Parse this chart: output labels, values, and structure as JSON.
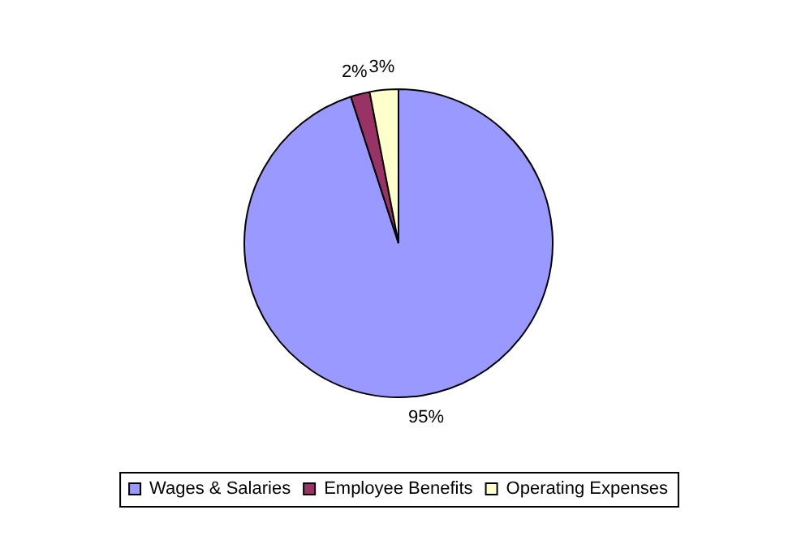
{
  "chart_data": {
    "type": "pie",
    "categories": [
      "Wages & Salaries",
      "Employee Benefits",
      "Operating Expenses"
    ],
    "values": [
      95,
      2,
      3
    ],
    "colors": [
      "#9999ff",
      "#993366",
      "#ffffcc"
    ],
    "value_labels": [
      "95%",
      "2%",
      "3%"
    ],
    "legend": "bottom"
  }
}
